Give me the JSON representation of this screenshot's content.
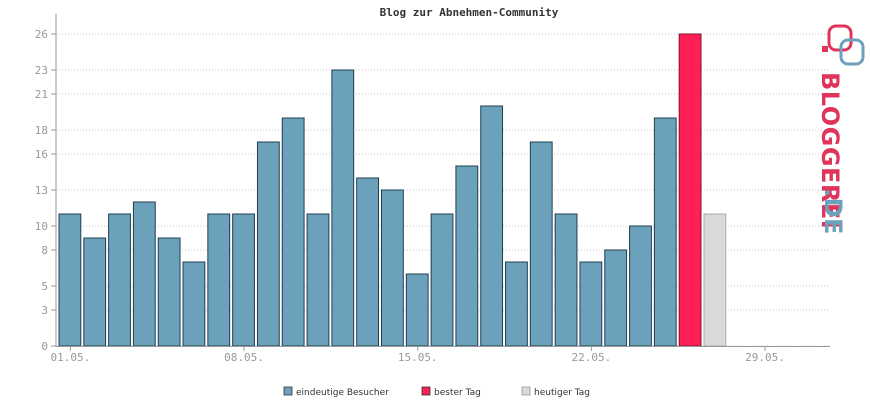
{
  "chart_data": {
    "type": "bar",
    "title": "Blog zur Abnehmen-Community",
    "xlabel": "",
    "ylabel": "",
    "ylim": [
      0,
      27
    ],
    "yticks": [
      0,
      3,
      5,
      8,
      10,
      13,
      16,
      18,
      21,
      23,
      26
    ],
    "xticks": [
      {
        "index": 0,
        "label": "01.05."
      },
      {
        "index": 7,
        "label": "08.05."
      },
      {
        "index": 14,
        "label": "15.05."
      },
      {
        "index": 21,
        "label": "22.05."
      },
      {
        "index": 28,
        "label": "29.05."
      }
    ],
    "categories": [
      "01.05.",
      "02.05.",
      "03.05.",
      "04.05.",
      "05.05.",
      "06.05.",
      "07.05.",
      "08.05.",
      "09.05.",
      "10.05.",
      "11.05.",
      "12.05.",
      "13.05.",
      "14.05.",
      "15.05.",
      "16.05.",
      "17.05.",
      "18.05.",
      "19.05.",
      "20.05.",
      "21.05.",
      "22.05.",
      "23.05.",
      "24.05.",
      "25.05.",
      "26.05.",
      "27.05.",
      "28.05.",
      "29.05.",
      "30.05.",
      "31.05."
    ],
    "series": [
      {
        "name": "eindeutige Besucher",
        "color": "#6ba1bb",
        "values": [
          11,
          9,
          11,
          12,
          9,
          7,
          11,
          11,
          17,
          19,
          11,
          23,
          14,
          13,
          6,
          11,
          15,
          20,
          7,
          17,
          11,
          7,
          8,
          10,
          19,
          26,
          11,
          null,
          null,
          null,
          null
        ]
      }
    ],
    "best_day_index": 25,
    "today_index": 26,
    "legend": [
      {
        "label": "eindeutige Besucher",
        "color": "#6ba1bb"
      },
      {
        "label": "bester Tag",
        "color": "#ff1f57"
      },
      {
        "label": "heutiger Tag",
        "color": "#d9d9d9"
      }
    ],
    "legend_position": "bottom",
    "grid": true
  },
  "logo": {
    "text": "BLOGGEREI",
    "suffix": ".DE"
  },
  "colors": {
    "bar": "#6ba1bb",
    "best": "#ff1f57",
    "today": "#d9d9d9",
    "logo_red": "#e0345a",
    "logo_blue": "#6ba1bb"
  }
}
